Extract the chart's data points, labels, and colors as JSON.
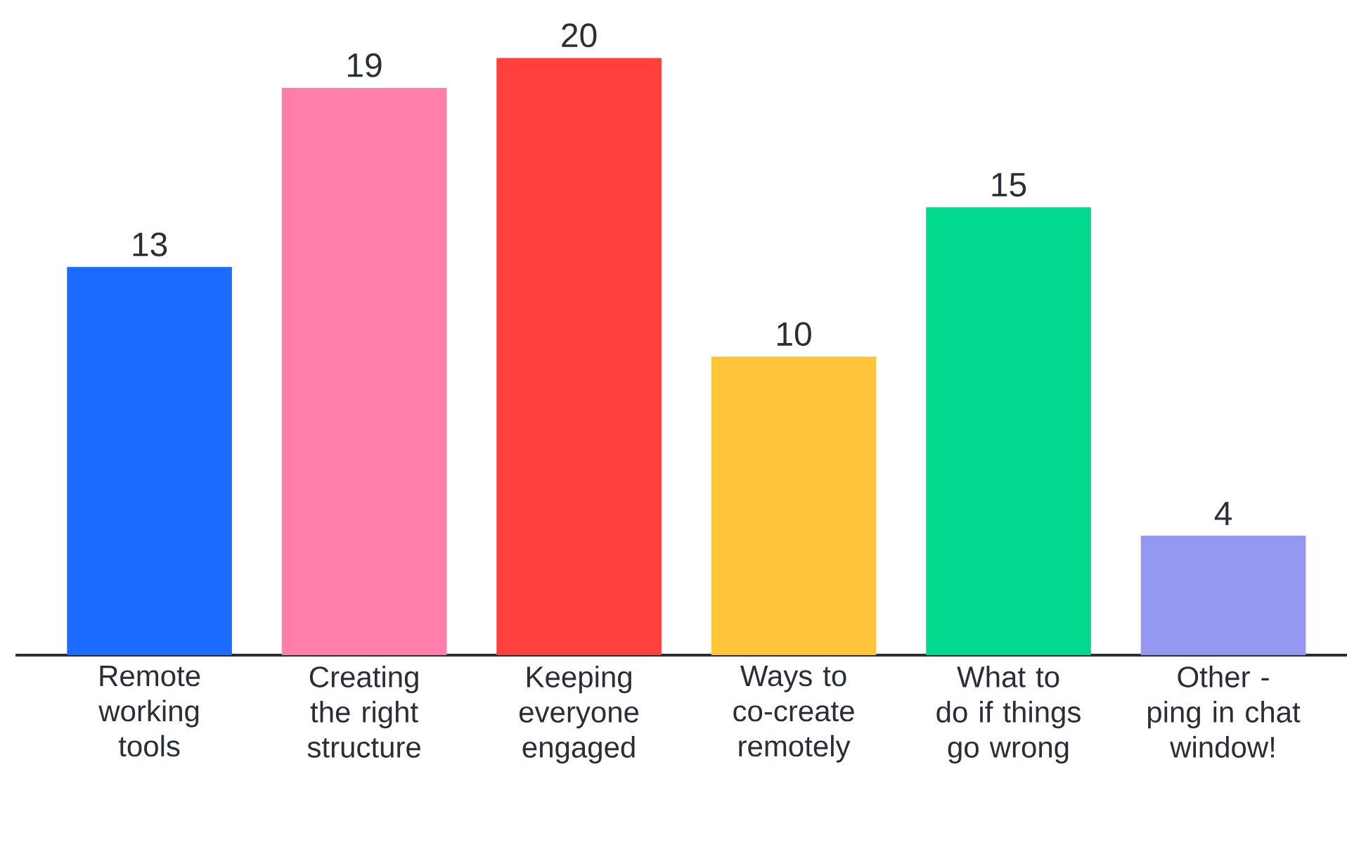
{
  "chart_data": {
    "type": "bar",
    "categories": [
      "Remote working tools",
      "Creating the right structure",
      "Keeping everyone engaged",
      "Ways to co-create remotely",
      "What to do if things go wrong",
      "Other - ping in chat window!"
    ],
    "values": [
      13,
      19,
      20,
      10,
      15,
      4
    ],
    "colors": [
      "#1c6bff",
      "#ff7eaa",
      "#ff403c",
      "#ffc43a",
      "#00d98e",
      "#9598f0"
    ],
    "data_labels": true
  }
}
